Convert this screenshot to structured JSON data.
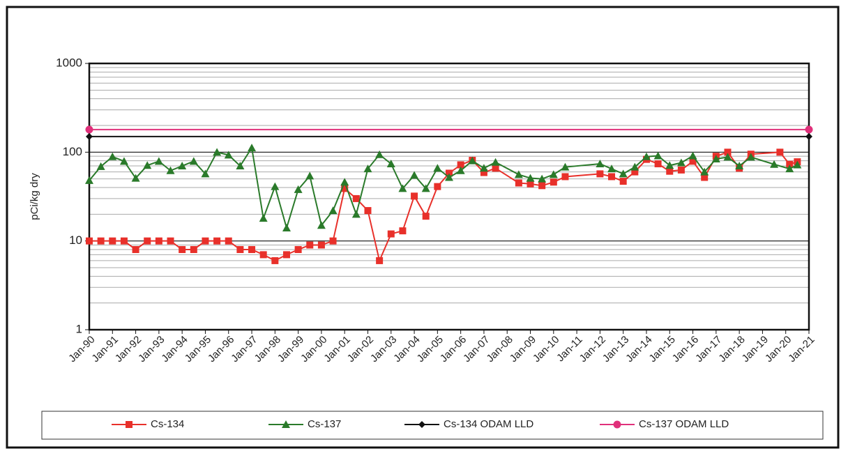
{
  "chart_data": {
    "type": "line",
    "y_label": "pCi/kg dry",
    "log_scale": true,
    "grid": true,
    "minor_grid": true,
    "legend": "bottom",
    "xlim": [
      "1990-01",
      "2021-01"
    ],
    "xticks": [
      {
        "value": "1990-01",
        "label": "Jan-90"
      },
      {
        "value": "1991-01",
        "label": "Jan-91"
      },
      {
        "value": "1992-01",
        "label": "Jan-92"
      },
      {
        "value": "1993-01",
        "label": "Jan-93"
      },
      {
        "value": "1994-01",
        "label": "Jan-94"
      },
      {
        "value": "1995-01",
        "label": "Jan-95"
      },
      {
        "value": "1996-01",
        "label": "Jan-96"
      },
      {
        "value": "1997-01",
        "label": "Jan-97"
      },
      {
        "value": "1998-01",
        "label": "Jan-98"
      },
      {
        "value": "1999-01",
        "label": "Jan-99"
      },
      {
        "value": "2000-01",
        "label": "Jan-00"
      },
      {
        "value": "2001-01",
        "label": "Jan-01"
      },
      {
        "value": "2002-01",
        "label": "Jan-02"
      },
      {
        "value": "2003-01",
        "label": "Jan-03"
      },
      {
        "value": "2004-01",
        "label": "Jan-04"
      },
      {
        "value": "2005-01",
        "label": "Jan-05"
      },
      {
        "value": "2006-01",
        "label": "Jan-06"
      },
      {
        "value": "2007-01",
        "label": "Jan-07"
      },
      {
        "value": "2008-01",
        "label": "Jan-08"
      },
      {
        "value": "2009-01",
        "label": "Jan-09"
      },
      {
        "value": "2010-01",
        "label": "Jan-10"
      },
      {
        "value": "2011-01",
        "label": "Jan-11"
      },
      {
        "value": "2012-01",
        "label": "Jan-12"
      },
      {
        "value": "2013-01",
        "label": "Jan-13"
      },
      {
        "value": "2014-01",
        "label": "Jan-14"
      },
      {
        "value": "2015-01",
        "label": "Jan-15"
      },
      {
        "value": "2016-01",
        "label": "Jan-16"
      },
      {
        "value": "2017-01",
        "label": "Jan-17"
      },
      {
        "value": "2018-01",
        "label": "Jan-18"
      },
      {
        "value": "2019-01",
        "label": "Jan-19"
      },
      {
        "value": "2020-01",
        "label": "Jan-20"
      },
      {
        "value": "2021-01",
        "label": "Jan-21"
      }
    ],
    "ylim": [
      1,
      1000
    ],
    "yticks": [
      1,
      10,
      100,
      1000
    ],
    "series": [
      {
        "name": "Cs-134",
        "color": "#e8302a",
        "marker": "square",
        "x": [
          "1990-01",
          "1990-07",
          "1991-01",
          "1991-07",
          "1992-01",
          "1992-07",
          "1993-01",
          "1993-07",
          "1994-01",
          "1994-07",
          "1995-01",
          "1995-07",
          "1996-01",
          "1996-07",
          "1997-01",
          "1997-07",
          "1998-01",
          "1998-07",
          "1999-01",
          "1999-07",
          "2000-01",
          "2000-07",
          "2001-01",
          "2001-07",
          "2002-01",
          "2002-07",
          "2003-01",
          "2003-07",
          "2004-01",
          "2004-07",
          "2005-01",
          "2005-07",
          "2006-01",
          "2006-07",
          "2007-01",
          "2007-07",
          "2008-07",
          "2009-01",
          "2009-07",
          "2010-01",
          "2010-07",
          "2012-01",
          "2012-07",
          "2013-01",
          "2013-07",
          "2014-01",
          "2014-07",
          "2015-01",
          "2015-07",
          "2016-01",
          "2016-07",
          "2017-01",
          "2017-07",
          "2018-01",
          "2018-07",
          "2019-10",
          "2020-03",
          "2020-07"
        ],
        "values": [
          10,
          10,
          10,
          10,
          8,
          10,
          10,
          10,
          8,
          8,
          10,
          10,
          10,
          8,
          8,
          7,
          6,
          7,
          8,
          9,
          9,
          10,
          39,
          30,
          22,
          6,
          12,
          13,
          32,
          19,
          41,
          58,
          72,
          81,
          59,
          66,
          45,
          44,
          42,
          46,
          53,
          57,
          53,
          47,
          60,
          83,
          74,
          61,
          63,
          79,
          52,
          90,
          100,
          66,
          95,
          100,
          73,
          78
        ]
      },
      {
        "name": "Cs-137",
        "color": "#2a7a2a",
        "marker": "triangle",
        "x": [
          "1990-01",
          "1990-07",
          "1991-01",
          "1991-07",
          "1992-01",
          "1992-07",
          "1993-01",
          "1993-07",
          "1994-01",
          "1994-07",
          "1995-01",
          "1995-07",
          "1996-01",
          "1996-07",
          "1997-01",
          "1997-07",
          "1998-01",
          "1998-07",
          "1999-01",
          "1999-07",
          "2000-01",
          "2000-07",
          "2001-01",
          "2001-07",
          "2002-01",
          "2002-07",
          "2003-01",
          "2003-07",
          "2004-01",
          "2004-07",
          "2005-01",
          "2005-07",
          "2006-01",
          "2006-07",
          "2007-01",
          "2007-07",
          "2008-07",
          "2009-01",
          "2009-07",
          "2010-01",
          "2010-07",
          "2012-01",
          "2012-07",
          "2013-01",
          "2013-07",
          "2014-01",
          "2014-07",
          "2015-01",
          "2015-07",
          "2016-01",
          "2016-07",
          "2017-01",
          "2017-07",
          "2018-01",
          "2018-07",
          "2019-07",
          "2020-03",
          "2020-07"
        ],
        "values": [
          48,
          69,
          89,
          79,
          51,
          71,
          79,
          62,
          70,
          79,
          57,
          100,
          93,
          70,
          112,
          18,
          41,
          14,
          38,
          54,
          15,
          22,
          46,
          20,
          65,
          94,
          74,
          39,
          55,
          39,
          66,
          52,
          62,
          80,
          66,
          77,
          56,
          51,
          50,
          56,
          68,
          74,
          65,
          57,
          68,
          89,
          91,
          71,
          76,
          91,
          60,
          84,
          88,
          70,
          88,
          73,
          65,
          72
        ]
      },
      {
        "name": "Cs-134 ODAM LLD",
        "color": "#111111",
        "marker": "diamond",
        "x": [
          "1990-01",
          "2021-01"
        ],
        "values": [
          150,
          150
        ]
      },
      {
        "name": "Cs-137 ODAM LLD",
        "color": "#e0307a",
        "marker": "circle",
        "x": [
          "1990-01",
          "2021-01"
        ],
        "values": [
          180,
          180
        ]
      }
    ]
  }
}
